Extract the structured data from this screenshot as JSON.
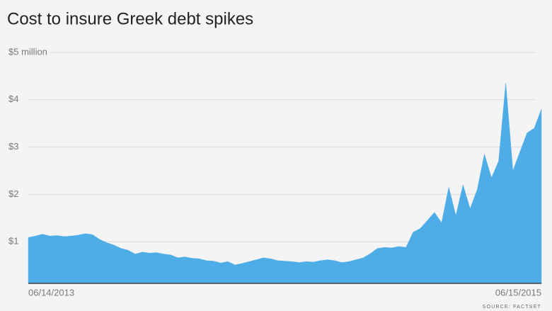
{
  "chart_data": {
    "type": "area",
    "title": "Cost to insure Greek debt spikes",
    "source": "SOURCE: FACTSET",
    "color": "#4eade7",
    "categories": [
      "06/14/2013",
      null,
      null,
      null,
      null,
      null,
      null,
      null,
      null,
      null,
      null,
      null,
      null,
      null,
      null,
      null,
      null,
      null,
      null,
      null,
      null,
      null,
      null,
      null,
      null,
      null,
      null,
      null,
      null,
      null,
      null,
      null,
      null,
      null,
      null,
      null,
      null,
      null,
      null,
      null,
      null,
      null,
      null,
      null,
      null,
      null,
      null,
      null,
      null,
      null,
      null,
      null,
      null,
      null,
      null,
      null,
      null,
      null,
      null,
      null,
      null,
      null,
      null,
      null,
      null,
      null,
      null,
      null,
      null,
      null,
      null,
      null,
      "06/15/2015"
    ],
    "values": [
      1.09,
      1.12,
      1.16,
      1.12,
      1.13,
      1.11,
      1.12,
      1.14,
      1.17,
      1.15,
      1.05,
      0.98,
      0.93,
      0.86,
      0.82,
      0.74,
      0.78,
      0.76,
      0.77,
      0.74,
      0.72,
      0.66,
      0.68,
      0.65,
      0.64,
      0.6,
      0.59,
      0.55,
      0.58,
      0.51,
      0.54,
      0.58,
      0.62,
      0.66,
      0.64,
      0.6,
      0.59,
      0.58,
      0.56,
      0.58,
      0.57,
      0.6,
      0.62,
      0.6,
      0.56,
      0.58,
      0.62,
      0.66,
      0.75,
      0.86,
      0.88,
      0.87,
      0.9,
      0.88,
      1.2,
      1.28,
      1.45,
      1.62,
      1.4,
      2.15,
      1.55,
      2.2,
      1.7,
      2.1,
      2.85,
      2.35,
      2.7,
      4.35,
      2.5,
      2.9,
      3.3,
      3.4,
      3.8
    ],
    "ylim": [
      0.12,
      5
    ],
    "yticks": [
      {
        "value": 1,
        "label": "$1"
      },
      {
        "value": 2,
        "label": "$2"
      },
      {
        "value": 3,
        "label": "$3"
      },
      {
        "value": 4,
        "label": "$4"
      },
      {
        "value": 5,
        "label": "$5 million"
      }
    ],
    "grid": true
  }
}
